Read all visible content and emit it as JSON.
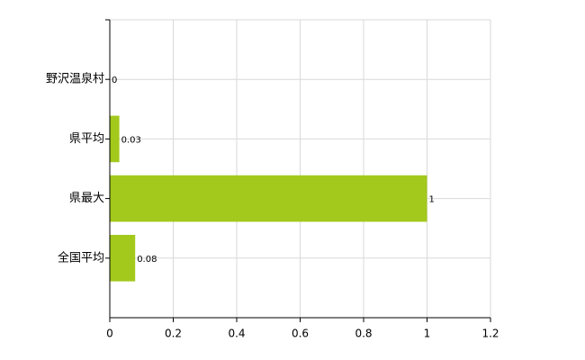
{
  "chart_data": {
    "type": "bar",
    "orientation": "horizontal",
    "categories": [
      "野沢温泉村",
      "県平均",
      "県最大",
      "全国平均"
    ],
    "values": [
      0,
      0.03,
      1,
      0.08
    ],
    "color": "#a3c91c",
    "xlim": [
      0,
      1.2
    ],
    "xticks": [
      0,
      0.2,
      0.4,
      0.6,
      0.8,
      1,
      1.2
    ],
    "grid": true
  }
}
